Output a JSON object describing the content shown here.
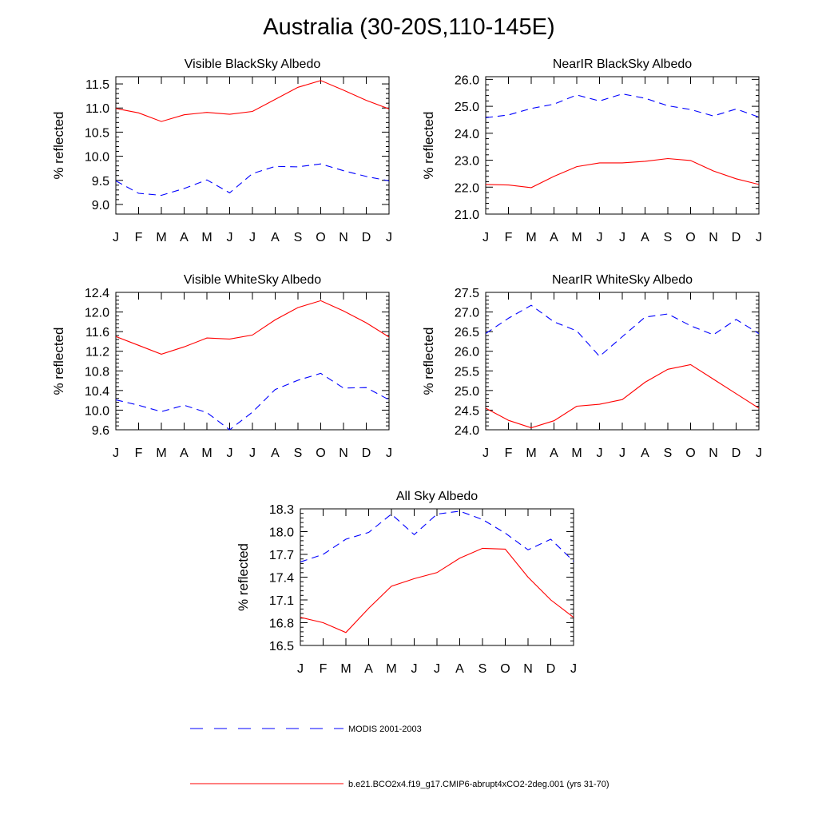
{
  "title": "Australia (30-20S,110-145E)",
  "colors": {
    "model": "#ff0000",
    "obs": "#0000ff"
  },
  "legend": [
    {
      "key": "obs",
      "style": "dashed",
      "label": "MODIS 2001-2003"
    },
    {
      "key": "model",
      "style": "solid",
      "label": "b.e21.BCO2x4.f19_g17.CMIP6-abrupt4xCO2-2deg.001 (yrs 31-70)"
    }
  ],
  "chart_data": [
    {
      "type": "line",
      "title": "Visible BlackSky Albedo",
      "ylabel": "% reflected",
      "categories": [
        "J",
        "F",
        "M",
        "A",
        "M",
        "J",
        "J",
        "A",
        "S",
        "O",
        "N",
        "D",
        "J"
      ],
      "ylim": [
        8.8,
        11.65
      ],
      "yticks": [
        "9.0",
        "9.5",
        "10.0",
        "10.5",
        "11.0",
        "11.5"
      ],
      "series": [
        {
          "name": "model",
          "values": [
            10.99,
            10.9,
            10.72,
            10.86,
            10.91,
            10.87,
            10.93,
            11.18,
            11.43,
            11.57,
            11.37,
            11.16,
            10.98
          ]
        },
        {
          "name": "obs",
          "values": [
            9.49,
            9.23,
            9.19,
            9.33,
            9.51,
            9.24,
            9.64,
            9.79,
            9.78,
            9.84,
            9.7,
            9.58,
            9.49
          ]
        }
      ]
    },
    {
      "type": "line",
      "title": "NearIR BlackSky Albedo",
      "ylabel": "% reflected",
      "categories": [
        "J",
        "F",
        "M",
        "A",
        "M",
        "J",
        "J",
        "A",
        "S",
        "O",
        "N",
        "D",
        "J"
      ],
      "ylim": [
        21.0,
        26.1
      ],
      "yticks": [
        "21.0",
        "22.0",
        "23.0",
        "24.0",
        "25.0",
        "26.0"
      ],
      "series": [
        {
          "name": "model",
          "values": [
            22.1,
            22.08,
            21.98,
            22.4,
            22.76,
            22.9,
            22.9,
            22.96,
            23.06,
            22.99,
            22.6,
            22.31,
            22.1
          ]
        },
        {
          "name": "obs",
          "values": [
            24.58,
            24.68,
            24.92,
            25.08,
            25.42,
            25.2,
            25.46,
            25.3,
            25.02,
            24.88,
            24.64,
            24.9,
            24.6
          ]
        }
      ]
    },
    {
      "type": "line",
      "title": "Visible WhiteSky Albedo",
      "ylabel": "% reflected",
      "categories": [
        "J",
        "F",
        "M",
        "A",
        "M",
        "J",
        "J",
        "A",
        "S",
        "O",
        "N",
        "D",
        "J"
      ],
      "ylim": [
        9.6,
        12.4
      ],
      "yticks": [
        "9.6",
        "10.0",
        "10.4",
        "10.8",
        "11.2",
        "11.6",
        "12.0",
        "12.4"
      ],
      "series": [
        {
          "name": "model",
          "values": [
            11.5,
            11.32,
            11.14,
            11.29,
            11.47,
            11.45,
            11.53,
            11.84,
            12.09,
            12.23,
            12.02,
            11.78,
            11.49
          ]
        },
        {
          "name": "obs",
          "values": [
            10.21,
            10.1,
            9.97,
            10.1,
            9.95,
            9.6,
            9.96,
            10.42,
            10.61,
            10.75,
            10.45,
            10.46,
            10.21
          ]
        }
      ]
    },
    {
      "type": "line",
      "title": "NearIR WhiteSky Albedo",
      "ylabel": "% reflected",
      "categories": [
        "J",
        "F",
        "M",
        "A",
        "M",
        "J",
        "J",
        "A",
        "S",
        "O",
        "N",
        "D",
        "J"
      ],
      "ylim": [
        24.0,
        27.5
      ],
      "yticks": [
        "24.0",
        "24.5",
        "25.0",
        "25.5",
        "26.0",
        "26.5",
        "27.0",
        "27.5"
      ],
      "series": [
        {
          "name": "model",
          "values": [
            24.55,
            24.24,
            24.05,
            24.23,
            24.6,
            24.65,
            24.77,
            25.21,
            25.54,
            25.66,
            25.29,
            24.92,
            24.55
          ]
        },
        {
          "name": "obs",
          "values": [
            26.45,
            26.84,
            27.17,
            26.75,
            26.52,
            25.87,
            26.37,
            26.87,
            26.95,
            26.65,
            26.42,
            26.81,
            26.45
          ]
        }
      ]
    },
    {
      "type": "line",
      "title": "All Sky Albedo",
      "ylabel": "% reflected",
      "categories": [
        "J",
        "F",
        "M",
        "A",
        "M",
        "J",
        "J",
        "A",
        "S",
        "O",
        "N",
        "D",
        "J"
      ],
      "ylim": [
        16.5,
        18.3
      ],
      "yticks": [
        "16.5",
        "16.8",
        "17.1",
        "17.4",
        "17.7",
        "18.0",
        "18.3"
      ],
      "series": [
        {
          "name": "model",
          "values": [
            16.87,
            16.8,
            16.67,
            16.99,
            17.28,
            17.38,
            17.46,
            17.65,
            17.78,
            17.77,
            17.4,
            17.1,
            16.87
          ]
        },
        {
          "name": "obs",
          "values": [
            17.6,
            17.7,
            17.9,
            17.99,
            18.23,
            17.96,
            18.23,
            18.27,
            18.16,
            17.98,
            17.76,
            17.9,
            17.61
          ]
        }
      ]
    }
  ]
}
